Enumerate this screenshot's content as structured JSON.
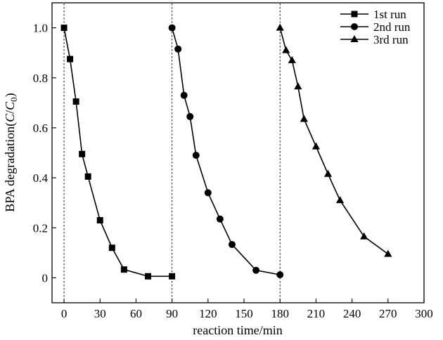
{
  "chart_data": {
    "type": "line",
    "xlabel": "reaction time/min",
    "ylabel_prefix": "BPA degradation(",
    "ylabel_var1": "C",
    "ylabel_slash": "/",
    "ylabel_var2": "C",
    "ylabel_sub": "0",
    "ylabel_suffix": ")",
    "xlim": [
      -10,
      300
    ],
    "ylim": [
      -0.1,
      1.1
    ],
    "xticks": [
      0,
      30,
      60,
      90,
      120,
      150,
      180,
      210,
      240,
      270,
      300
    ],
    "xtick_labels": [
      "0",
      "30",
      "60",
      "90",
      "120",
      "150",
      "180",
      "210",
      "240",
      "270",
      "300"
    ],
    "yticks": [
      0,
      0.2,
      0.4,
      0.6,
      0.8,
      1.0
    ],
    "ytick_labels": [
      "0",
      "0.2",
      "0.4",
      "0.6",
      "0.8",
      "1.0"
    ],
    "grid": false,
    "legend_position": "top-right",
    "vlines": [
      0,
      90,
      180
    ],
    "series": [
      {
        "name": "1st run",
        "marker": "square",
        "x": [
          0,
          5,
          10,
          15,
          20,
          30,
          40,
          50,
          70,
          90
        ],
        "y": [
          1.0,
          0.875,
          0.705,
          0.495,
          0.405,
          0.23,
          0.12,
          0.033,
          0.006,
          0.006
        ]
      },
      {
        "name": "2nd run",
        "marker": "circle",
        "x": [
          90,
          95,
          100,
          105,
          110,
          120,
          130,
          140,
          160,
          180
        ],
        "y": [
          1.0,
          0.915,
          0.73,
          0.645,
          0.49,
          0.34,
          0.235,
          0.133,
          0.03,
          0.012
        ]
      },
      {
        "name": "3rd run",
        "marker": "triangle",
        "x": [
          180,
          185,
          190,
          195,
          200,
          210,
          220,
          230,
          250,
          270
        ],
        "y": [
          1.0,
          0.91,
          0.87,
          0.765,
          0.635,
          0.525,
          0.415,
          0.31,
          0.165,
          0.095
        ]
      }
    ]
  }
}
